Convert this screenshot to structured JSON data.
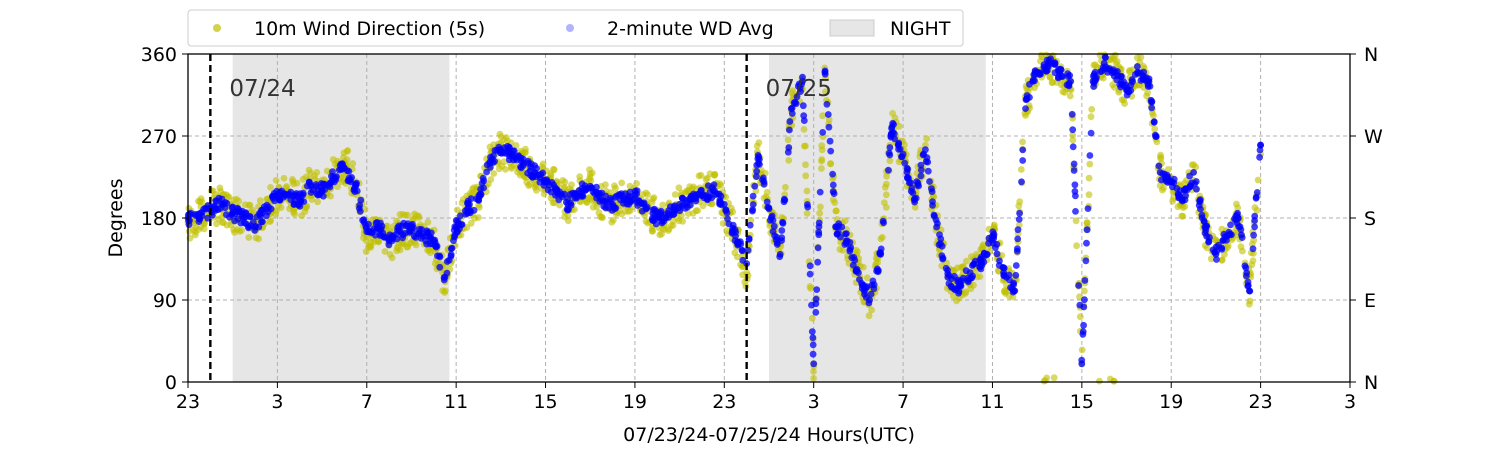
{
  "chart_data": {
    "type": "scatter",
    "xlabel": "07/23/24-07/25/24  Hours(UTC)",
    "ylabel": "Degrees",
    "xlim_hours": [
      0,
      52
    ],
    "ylim": [
      0,
      360
    ],
    "x_ticks": [
      {
        "hour": 0,
        "label": "23"
      },
      {
        "hour": 4,
        "label": "3"
      },
      {
        "hour": 8,
        "label": "7"
      },
      {
        "hour": 12,
        "label": "11"
      },
      {
        "hour": 16,
        "label": "15"
      },
      {
        "hour": 20,
        "label": "19"
      },
      {
        "hour": 24,
        "label": "23"
      },
      {
        "hour": 28,
        "label": "3"
      },
      {
        "hour": 32,
        "label": "7"
      },
      {
        "hour": 36,
        "label": "11"
      },
      {
        "hour": 40,
        "label": "15"
      },
      {
        "hour": 44,
        "label": "19"
      },
      {
        "hour": 48,
        "label": "23"
      },
      {
        "hour": 52,
        "label": "3"
      }
    ],
    "y_ticks": [
      0,
      90,
      180,
      270,
      360
    ],
    "y_ticks_right": [
      "N",
      "E",
      "S",
      "W",
      "N"
    ],
    "grid": true,
    "legend_position": "top, above plot",
    "legend": [
      {
        "label": "10m Wind Direction (5s)",
        "kind": "marker",
        "color": "#bfbf00"
      },
      {
        "label": "2-minute WD Avg",
        "kind": "marker",
        "color": "#0000ff"
      },
      {
        "label": "NIGHT",
        "kind": "patch",
        "color": "#e6e6e6"
      }
    ],
    "night_bands_hours": [
      [
        2,
        11.7
      ],
      [
        26,
        35.7
      ]
    ],
    "day_markers": [
      {
        "hour": 1,
        "label": "07/24"
      },
      {
        "hour": 25,
        "label": "07/25"
      }
    ],
    "series": [
      {
        "name": "10m Wind Direction (5s)",
        "color": "#bfbf00",
        "spread_deg": 20,
        "x": [
          0,
          0.5,
          1,
          1.5,
          2,
          2.5,
          3,
          3.5,
          4,
          4.5,
          5,
          5.5,
          6,
          6.5,
          7,
          7.5,
          8,
          8.5,
          9,
          9.5,
          10,
          10.5,
          11,
          11.5,
          12,
          12.5,
          13,
          13.5,
          14,
          14.5,
          15,
          15.5,
          16,
          16.5,
          17,
          17.5,
          18,
          18.5,
          19,
          19.5,
          20,
          20.5,
          21,
          21.5,
          22,
          22.5,
          23,
          23.5,
          24,
          24.5,
          25,
          25.5,
          26,
          26.5,
          27,
          27.5,
          28,
          28.5,
          29,
          29.5,
          30,
          30.5,
          31,
          31.5,
          32,
          32.5,
          33,
          33.5,
          34,
          34.5,
          35,
          35.5,
          36,
          36.5,
          37,
          37.5,
          38,
          38.5,
          39,
          39.5,
          40,
          40.5,
          41,
          41.5,
          42,
          42.5,
          43,
          43.5,
          44,
          44.5,
          45,
          45.5,
          46,
          46.5,
          47,
          47.5,
          48
        ],
        "y": [
          175,
          180,
          190,
          195,
          185,
          180,
          170,
          190,
          205,
          205,
          200,
          215,
          210,
          225,
          240,
          220,
          160,
          170,
          150,
          165,
          170,
          160,
          155,
          110,
          170,
          190,
          200,
          240,
          255,
          250,
          240,
          230,
          220,
          215,
          195,
          210,
          215,
          200,
          195,
          200,
          205,
          190,
          180,
          185,
          195,
          200,
          210,
          215,
          190,
          160,
          120,
          250,
          190,
          140,
          300,
          330,
          20,
          340,
          170,
          155,
          120,
          90,
          140,
          280,
          250,
          200,
          260,
          170,
          115,
          105,
          120,
          130,
          160,
          120,
          100,
          310,
          340,
          350,
          340,
          330,
          20,
          330,
          350,
          340,
          320,
          340,
          330,
          230,
          220,
          200,
          230,
          170,
          140,
          160,
          180,
          100,
          250
        ]
      },
      {
        "name": "2-minute WD Avg",
        "color": "#0000ff",
        "x": [
          0,
          0.5,
          1,
          1.5,
          2,
          2.5,
          3,
          3.5,
          4,
          4.5,
          5,
          5.5,
          6,
          6.5,
          7,
          7.5,
          8,
          8.5,
          9,
          9.5,
          10,
          10.5,
          11,
          11.5,
          12,
          12.5,
          13,
          13.5,
          14,
          14.5,
          15,
          15.5,
          16,
          16.5,
          17,
          17.5,
          18,
          18.5,
          19,
          19.5,
          20,
          20.5,
          21,
          21.5,
          22,
          22.5,
          23,
          23.5,
          24,
          24.5,
          25,
          25.5,
          26,
          26.5,
          27,
          27.5,
          28,
          28.5,
          29,
          29.5,
          30,
          30.5,
          31,
          31.5,
          32,
          32.5,
          33,
          33.5,
          34,
          34.5,
          35,
          35.5,
          36,
          36.5,
          37,
          37.5,
          38,
          38.5,
          39,
          39.5,
          40,
          40.5,
          41,
          41.5,
          42,
          42.5,
          43,
          43.5,
          44,
          44.5,
          45,
          45.5,
          46,
          46.5,
          47,
          47.5,
          48
        ],
        "y": [
          180,
          180,
          190,
          195,
          185,
          180,
          170,
          190,
          205,
          205,
          200,
          215,
          210,
          225,
          235,
          215,
          165,
          170,
          155,
          165,
          170,
          160,
          155,
          115,
          170,
          190,
          200,
          240,
          255,
          250,
          240,
          230,
          220,
          210,
          195,
          210,
          215,
          200,
          195,
          200,
          205,
          190,
          180,
          185,
          195,
          200,
          205,
          210,
          195,
          160,
          130,
          245,
          190,
          140,
          300,
          330,
          20,
          340,
          170,
          155,
          120,
          90,
          140,
          280,
          250,
          200,
          255,
          170,
          115,
          105,
          120,
          130,
          160,
          120,
          100,
          310,
          340,
          350,
          340,
          330,
          20,
          330,
          350,
          340,
          320,
          340,
          330,
          230,
          220,
          200,
          230,
          170,
          140,
          160,
          180,
          100,
          260
        ]
      }
    ]
  }
}
